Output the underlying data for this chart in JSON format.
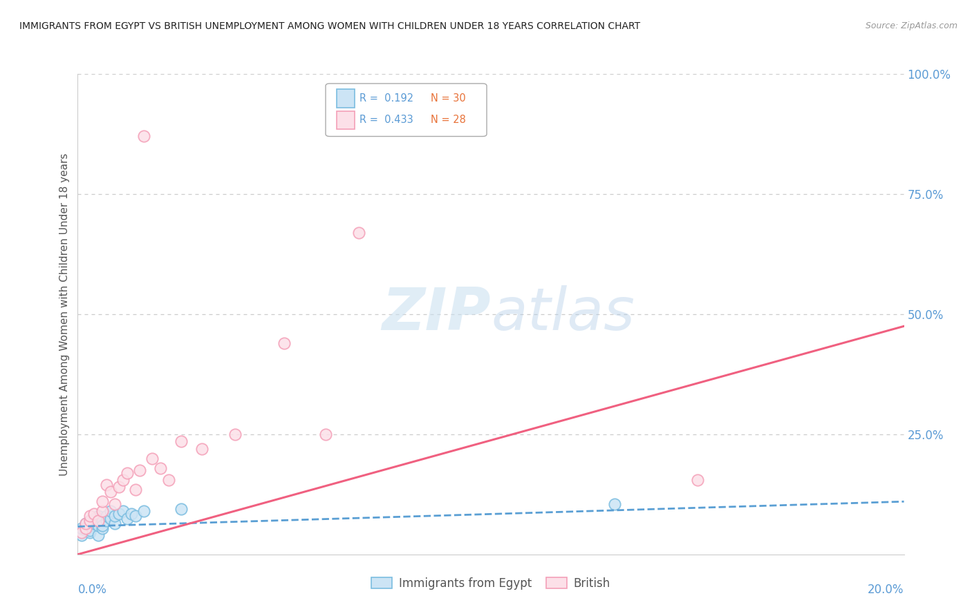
{
  "title": "IMMIGRANTS FROM EGYPT VS BRITISH UNEMPLOYMENT AMONG WOMEN WITH CHILDREN UNDER 18 YEARS CORRELATION CHART",
  "source": "Source: ZipAtlas.com",
  "ylabel": "Unemployment Among Women with Children Under 18 years",
  "color_egypt": "#7bbde0",
  "color_british": "#f4a0b8",
  "color_egypt_line": "#5a9fd4",
  "color_british_line": "#f06080",
  "background": "#ffffff",
  "grid_color": "#cccccc",
  "tick_color": "#5b9bd5",
  "label_color": "#555555",
  "egypt_x": [
    0.001,
    0.001,
    0.002,
    0.002,
    0.003,
    0.003,
    0.003,
    0.003,
    0.004,
    0.004,
    0.005,
    0.005,
    0.005,
    0.006,
    0.006,
    0.006,
    0.007,
    0.007,
    0.008,
    0.008,
    0.009,
    0.009,
    0.01,
    0.011,
    0.012,
    0.013,
    0.014,
    0.016,
    0.025,
    0.13
  ],
  "egypt_y": [
    0.04,
    0.055,
    0.05,
    0.065,
    0.045,
    0.06,
    0.07,
    0.05,
    0.065,
    0.075,
    0.04,
    0.06,
    0.08,
    0.055,
    0.07,
    0.06,
    0.07,
    0.08,
    0.075,
    0.09,
    0.065,
    0.08,
    0.085,
    0.09,
    0.075,
    0.085,
    0.08,
    0.09,
    0.095,
    0.105
  ],
  "british_x": [
    0.001,
    0.002,
    0.002,
    0.003,
    0.003,
    0.004,
    0.005,
    0.006,
    0.006,
    0.007,
    0.008,
    0.009,
    0.01,
    0.011,
    0.012,
    0.014,
    0.015,
    0.016,
    0.018,
    0.02,
    0.022,
    0.025,
    0.03,
    0.038,
    0.05,
    0.06,
    0.068,
    0.15
  ],
  "british_y": [
    0.045,
    0.055,
    0.065,
    0.07,
    0.08,
    0.085,
    0.07,
    0.09,
    0.11,
    0.145,
    0.13,
    0.105,
    0.14,
    0.155,
    0.17,
    0.135,
    0.175,
    0.87,
    0.2,
    0.18,
    0.155,
    0.235,
    0.22,
    0.25,
    0.44,
    0.25,
    0.67,
    0.155
  ],
  "egypt_trend_x0": 0.0,
  "egypt_trend_y0": 0.058,
  "egypt_trend_x1": 0.2,
  "egypt_trend_y1": 0.11,
  "british_trend_x0": 0.0,
  "british_trend_y0": 0.0,
  "british_trend_x1": 0.2,
  "british_trend_y1": 0.475,
  "xlim": [
    0.0,
    0.2
  ],
  "ylim": [
    0.0,
    1.0
  ],
  "ytick_positions": [
    0.25,
    0.5,
    0.75,
    1.0
  ],
  "ytick_labels": [
    "25.0%",
    "50.0%",
    "75.0%",
    "100.0%"
  ]
}
